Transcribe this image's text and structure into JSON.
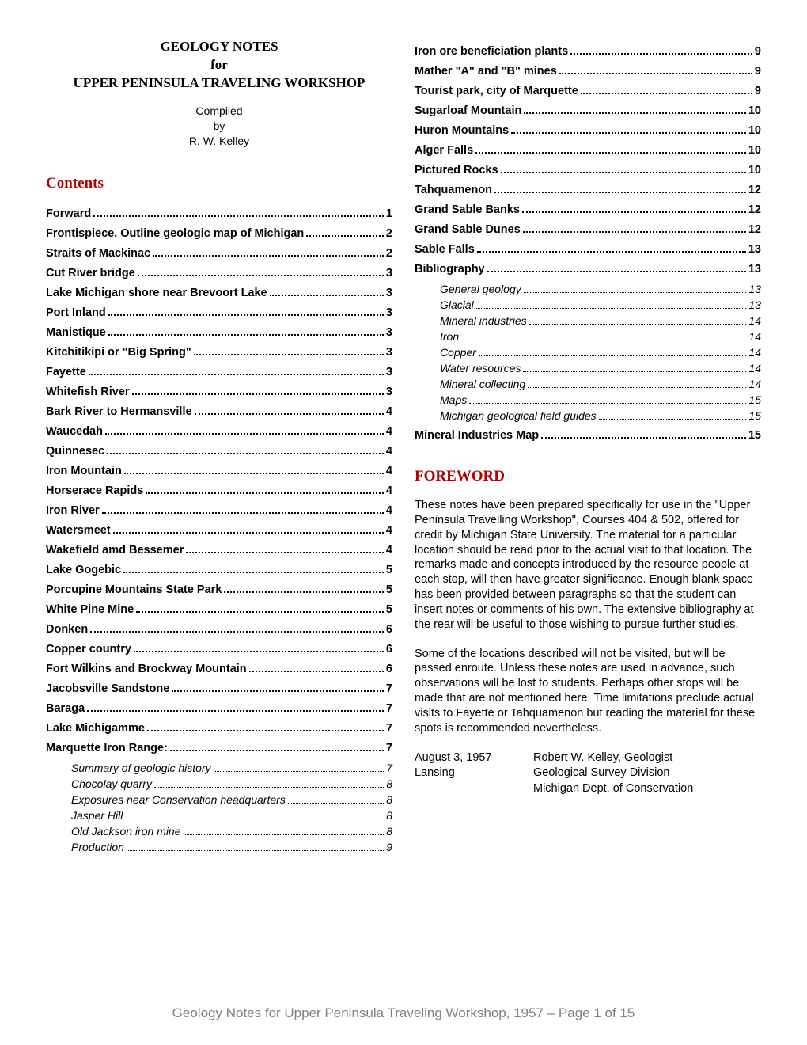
{
  "title": {
    "line1": "GEOLOGY NOTES",
    "line2": "for",
    "line3": "UPPER PENINSULA TRAVELING WORKSHOP"
  },
  "compiled": {
    "l1": "Compiled",
    "l2": "by",
    "l3": "R. W. Kelley"
  },
  "contents_heading": "Contents",
  "foreword_heading": "FOREWORD",
  "toc_left": [
    {
      "label": "Forward",
      "page": "1",
      "bold": true
    },
    {
      "label": "Frontispiece.  Outline geologic map of Michigan",
      "page": "2",
      "bold": true
    },
    {
      "label": "Straits of Mackinac",
      "page": "2",
      "bold": true
    },
    {
      "label": "Cut River bridge",
      "page": "3",
      "bold": true
    },
    {
      "label": "Lake Michigan shore near Brevoort Lake",
      "page": "3",
      "bold": true
    },
    {
      "label": "Port Inland",
      "page": "3",
      "bold": true
    },
    {
      "label": "Manistique",
      "page": "3",
      "bold": true
    },
    {
      "label": "Kitchitikipi or \"Big Spring\"",
      "page": "3",
      "bold": true
    },
    {
      "label": "Fayette",
      "page": "3",
      "bold": true
    },
    {
      "label": "Whitefish River",
      "page": "3",
      "bold": true
    },
    {
      "label": "Bark River to Hermansville",
      "page": "4",
      "bold": true
    },
    {
      "label": "Waucedah",
      "page": "4",
      "bold": true
    },
    {
      "label": "Quinnesec",
      "page": "4",
      "bold": true
    },
    {
      "label": "Iron Mountain",
      "page": "4",
      "bold": true
    },
    {
      "label": "Horserace Rapids",
      "page": "4",
      "bold": true
    },
    {
      "label": "Iron River",
      "page": "4",
      "bold": true
    },
    {
      "label": "Watersmeet",
      "page": "4",
      "bold": true
    },
    {
      "label": "Wakefield amd Bessemer",
      "page": "4",
      "bold": true
    },
    {
      "label": "Lake Gogebic",
      "page": "5",
      "bold": true
    },
    {
      "label": "Porcupine Mountains State Park",
      "page": "5",
      "bold": true
    },
    {
      "label": "White Pine Mine",
      "page": "5",
      "bold": true
    },
    {
      "label": "Donken",
      "page": "6",
      "bold": true
    },
    {
      "label": "Copper country",
      "page": "6",
      "bold": true
    },
    {
      "label": "Fort Wilkins and Brockway Mountain",
      "page": "6",
      "bold": true
    },
    {
      "label": "Jacobsville Sandstone",
      "page": "7",
      "bold": true
    },
    {
      "label": "Baraga",
      "page": "7",
      "bold": true
    },
    {
      "label": "Lake Michigamme",
      "page": "7",
      "bold": true
    },
    {
      "label": "Marquette Iron Range:",
      "page": "7",
      "bold": true
    },
    {
      "label": "Summary of geologic history",
      "page": "7",
      "sub": true
    },
    {
      "label": "Chocolay quarry",
      "page": "8",
      "sub": true
    },
    {
      "label": "Exposures near Conservation headquarters",
      "page": "8",
      "sub": true
    },
    {
      "label": "Jasper Hill",
      "page": "8",
      "sub": true
    },
    {
      "label": "Old Jackson iron mine",
      "page": "8",
      "sub": true
    },
    {
      "label": "Production",
      "page": "9",
      "sub": true
    }
  ],
  "toc_right": [
    {
      "label": "Iron ore beneficiation plants",
      "page": "9",
      "bold": true
    },
    {
      "label": "Mather \"A\" and \"B\" mines",
      "page": "9",
      "bold": true
    },
    {
      "label": "Tourist park, city of Marquette",
      "page": "9",
      "bold": true
    },
    {
      "label": "Sugarloaf Mountain",
      "page": "10",
      "bold": true
    },
    {
      "label": "Huron Mountains",
      "page": "10",
      "bold": true
    },
    {
      "label": "Alger Falls",
      "page": "10",
      "bold": true
    },
    {
      "label": "Pictured Rocks",
      "page": "10",
      "bold": true
    },
    {
      "label": "Tahquamenon",
      "page": "12",
      "bold": true
    },
    {
      "label": "Grand Sable Banks",
      "page": "12",
      "bold": true
    },
    {
      "label": "Grand Sable Dunes",
      "page": "12",
      "bold": true
    },
    {
      "label": "Sable Falls",
      "page": "13",
      "bold": true
    },
    {
      "label": "Bibliography",
      "page": "13",
      "bold": true
    },
    {
      "label": "General geology",
      "page": "13",
      "sub": true
    },
    {
      "label": "Glacial",
      "page": "13",
      "sub": true
    },
    {
      "label": "Mineral industries",
      "page": "14",
      "sub": true
    },
    {
      "label": "Iron",
      "page": "14",
      "sub": true
    },
    {
      "label": "Copper",
      "page": "14",
      "sub": true
    },
    {
      "label": "Water resources",
      "page": "14",
      "sub": true
    },
    {
      "label": "Mineral collecting",
      "page": "14",
      "sub": true
    },
    {
      "label": "Maps",
      "page": "15",
      "sub": true
    },
    {
      "label": "Michigan geological field guides",
      "page": "15",
      "sub": true
    },
    {
      "label": "Mineral Industries Map",
      "page": "15",
      "bold": true
    }
  ],
  "foreword": {
    "p1": "These notes have been prepared specifically for use in the \"Upper Peninsula Travelling Workshop\", Courses 404 & 502, offered for credit by Michigan State University.  The material for a particular location should be read prior to the actual visit to that location.  The remarks made and concepts introduced by the resource people at each stop, will then have greater significance.  Enough blank space has been provided between paragraphs so that the student can insert notes or comments of his own.  The extensive bibliography at the rear will be useful to those wishing to pursue further studies.",
    "p2": "Some of the locations described will not be visited, but will be passed enroute.  Unless these notes are used in advance, such observations will be lost to students.  Perhaps other stops will be made that are not mentioned here.  Time limitations preclude actual visits to Fayette or Tahquamenon but reading the material for these spots is recommended nevertheless."
  },
  "signature": {
    "date": "August 3, 1957",
    "place": "Lansing",
    "name": "Robert W. Kelley, Geologist",
    "div": "Geological Survey Division",
    "dept": "Michigan Dept. of Conservation"
  },
  "footer": "Geology Notes for Upper Peninsula Traveling Workshop, 1957 – Page 1 of 15"
}
